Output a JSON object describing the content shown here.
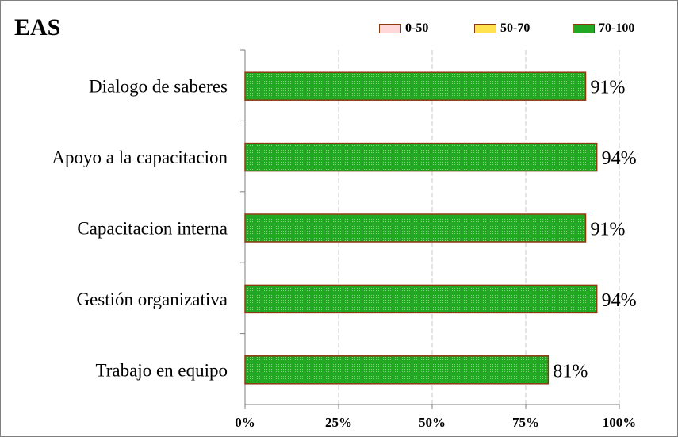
{
  "chart_data": {
    "type": "bar",
    "title": "EAS",
    "categories": [
      "Dialogo de saberes",
      "Apoyo a la capacitacion",
      "Capacitacion interna",
      "Gestión organizativa",
      "Trabajo en equipo"
    ],
    "values": [
      91,
      94,
      91,
      94,
      81
    ],
    "value_labels": [
      "91%",
      "94%",
      "91%",
      "94%",
      "81%"
    ],
    "xlim": [
      0,
      100
    ],
    "x_ticks": [
      "0%",
      "25%",
      "50%",
      "75%",
      "100%"
    ],
    "grid": "vertical dashed",
    "legend_position": "top-right",
    "legend": [
      {
        "label": "0-50",
        "color": "#ffd9d9"
      },
      {
        "label": "50-70",
        "color": "#ffe24d"
      },
      {
        "label": "70-100",
        "color": "#22a822"
      }
    ],
    "bar_color": "#22a822",
    "bar_border": "#8b3a10"
  }
}
